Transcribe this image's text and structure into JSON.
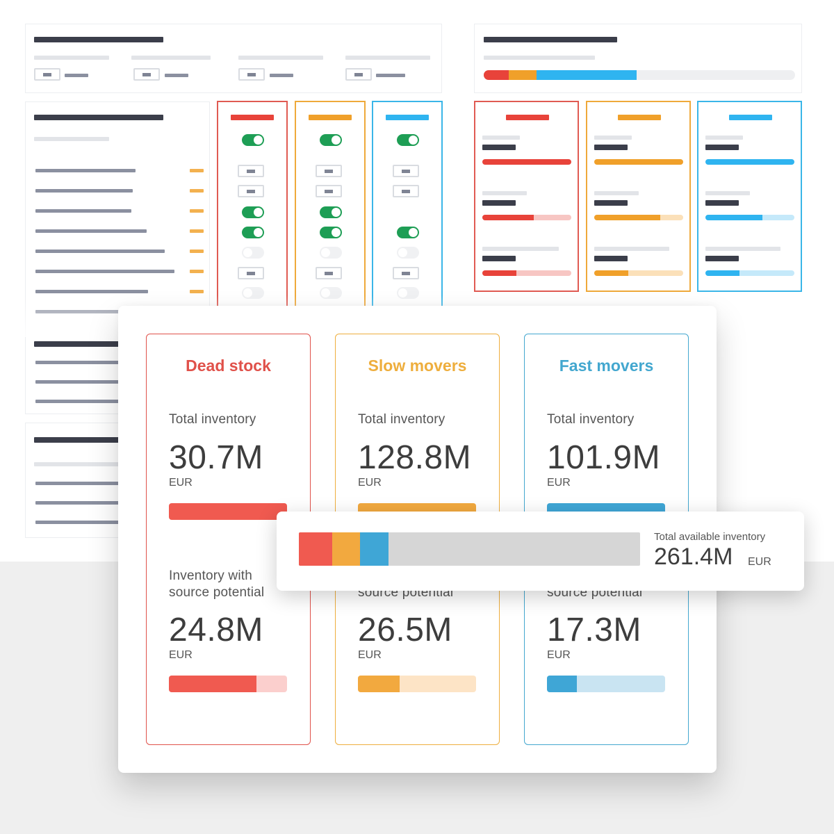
{
  "colors": {
    "dead": "#e8574f",
    "slow": "#efa93a",
    "fast": "#3aa7d6",
    "track": "#d6d6d6"
  },
  "cards": [
    {
      "title": "Dead stock",
      "color": "#e0514a",
      "total_label": "Total inventory",
      "total_value": "30.7M",
      "total_unit": "EUR",
      "total_fill": 1.0,
      "potential_label_line1": "Inventory with",
      "potential_label_line2": "source potential",
      "potential_value": "24.8M",
      "potential_unit": "EUR",
      "potential_fill": 0.74,
      "bar_color": "#f05a50",
      "bar_light": "#fbcfcd"
    },
    {
      "title": "Slow movers",
      "color": "#eeae3d",
      "total_label": "Total inventory",
      "total_value": "128.8M",
      "total_unit": "EUR",
      "total_fill": 1.0,
      "potential_label_line1": "",
      "potential_label_line2": "source potential",
      "potential_value": "26.5M",
      "potential_unit": "EUR",
      "potential_fill": 0.35,
      "bar_color": "#f2a93f",
      "bar_light": "#fde4c6"
    },
    {
      "title": "Fast movers",
      "color": "#43a7cf",
      "total_label": "Total inventory",
      "total_value": "101.9M",
      "total_unit": "EUR",
      "total_fill": 1.0,
      "potential_label_line1": "",
      "potential_label_line2": "source potential",
      "potential_value": "17.3M",
      "potential_unit": "EUR",
      "potential_fill": 0.25,
      "bar_color": "#3fa6d6",
      "bar_light": "#c9e4f2"
    }
  ],
  "overlay": {
    "label": "Total available inventory",
    "value": "261.4M",
    "unit": "EUR",
    "segments": [
      {
        "name": "dead",
        "fraction": 0.098,
        "color": "#f05a50"
      },
      {
        "name": "slow",
        "fraction": 0.082,
        "color": "#f2a93f"
      },
      {
        "name": "fast",
        "fraction": 0.082,
        "color": "#3fa6d6"
      }
    ]
  }
}
